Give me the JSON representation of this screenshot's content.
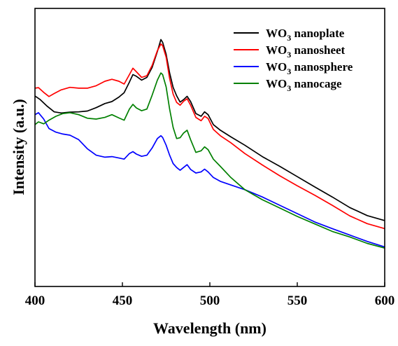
{
  "chart_data": {
    "type": "line",
    "title": "",
    "xlabel": "Wavelength (nm)",
    "ylabel": "Intensity (a.u.)",
    "xlim": [
      400,
      600
    ],
    "ylim": [
      0,
      1
    ],
    "xticks": [
      "400",
      "450",
      "500",
      "550",
      "600"
    ],
    "yticks_shown": false,
    "grid": false,
    "legend_position": "top-right",
    "series": [
      {
        "name_prefix": "WO",
        "name_sub": "3",
        "name_suffix": " nanoplate",
        "color": "#000000",
        "points": [
          [
            400,
            0.685
          ],
          [
            403,
            0.672
          ],
          [
            407,
            0.648
          ],
          [
            411,
            0.628
          ],
          [
            415,
            0.624
          ],
          [
            420,
            0.627
          ],
          [
            425,
            0.628
          ],
          [
            430,
            0.631
          ],
          [
            435,
            0.643
          ],
          [
            440,
            0.658
          ],
          [
            444,
            0.665
          ],
          [
            448,
            0.681
          ],
          [
            451,
            0.697
          ],
          [
            454,
            0.735
          ],
          [
            456,
            0.762
          ],
          [
            458,
            0.756
          ],
          [
            461,
            0.742
          ],
          [
            464,
            0.752
          ],
          [
            467,
            0.788
          ],
          [
            470,
            0.845
          ],
          [
            472,
            0.888
          ],
          [
            473,
            0.878
          ],
          [
            475,
            0.835
          ],
          [
            477,
            0.768
          ],
          [
            479,
            0.716
          ],
          [
            481,
            0.686
          ],
          [
            483,
            0.663
          ],
          [
            485,
            0.672
          ],
          [
            487,
            0.684
          ],
          [
            489,
            0.665
          ],
          [
            492,
            0.622
          ],
          [
            495,
            0.612
          ],
          [
            497,
            0.628
          ],
          [
            499,
            0.618
          ],
          [
            502,
            0.582
          ],
          [
            506,
            0.562
          ],
          [
            512,
            0.538
          ],
          [
            520,
            0.508
          ],
          [
            530,
            0.467
          ],
          [
            540,
            0.432
          ],
          [
            550,
            0.395
          ],
          [
            560,
            0.358
          ],
          [
            570,
            0.322
          ],
          [
            580,
            0.284
          ],
          [
            590,
            0.255
          ],
          [
            600,
            0.237
          ]
        ]
      },
      {
        "name_prefix": "WO",
        "name_sub": "3",
        "name_suffix": " nanosheet",
        "color": "#ff0000",
        "points": [
          [
            400,
            0.713
          ],
          [
            402,
            0.715
          ],
          [
            405,
            0.698
          ],
          [
            408,
            0.683
          ],
          [
            411,
            0.694
          ],
          [
            415,
            0.707
          ],
          [
            420,
            0.716
          ],
          [
            425,
            0.713
          ],
          [
            430,
            0.713
          ],
          [
            435,
            0.722
          ],
          [
            440,
            0.738
          ],
          [
            444,
            0.745
          ],
          [
            448,
            0.738
          ],
          [
            451,
            0.728
          ],
          [
            454,
            0.762
          ],
          [
            456,
            0.785
          ],
          [
            458,
            0.772
          ],
          [
            461,
            0.752
          ],
          [
            464,
            0.758
          ],
          [
            467,
            0.795
          ],
          [
            470,
            0.848
          ],
          [
            472,
            0.872
          ],
          [
            473,
            0.866
          ],
          [
            475,
            0.825
          ],
          [
            477,
            0.748
          ],
          [
            479,
            0.692
          ],
          [
            481,
            0.662
          ],
          [
            483,
            0.652
          ],
          [
            485,
            0.666
          ],
          [
            487,
            0.675
          ],
          [
            489,
            0.652
          ],
          [
            492,
            0.608
          ],
          [
            495,
            0.596
          ],
          [
            497,
            0.612
          ],
          [
            499,
            0.604
          ],
          [
            502,
            0.565
          ],
          [
            506,
            0.542
          ],
          [
            512,
            0.517
          ],
          [
            520,
            0.478
          ],
          [
            530,
            0.437
          ],
          [
            540,
            0.398
          ],
          [
            550,
            0.362
          ],
          [
            560,
            0.328
          ],
          [
            570,
            0.292
          ],
          [
            580,
            0.254
          ],
          [
            590,
            0.226
          ],
          [
            600,
            0.208
          ]
        ]
      },
      {
        "name_prefix": "WO",
        "name_sub": "3",
        "name_suffix": " nanosphere",
        "color": "#0000ff",
        "points": [
          [
            400,
            0.618
          ],
          [
            402,
            0.625
          ],
          [
            405,
            0.602
          ],
          [
            408,
            0.568
          ],
          [
            412,
            0.555
          ],
          [
            416,
            0.548
          ],
          [
            420,
            0.544
          ],
          [
            425,
            0.528
          ],
          [
            430,
            0.495
          ],
          [
            435,
            0.472
          ],
          [
            440,
            0.465
          ],
          [
            444,
            0.467
          ],
          [
            448,
            0.462
          ],
          [
            451,
            0.458
          ],
          [
            454,
            0.478
          ],
          [
            456,
            0.485
          ],
          [
            458,
            0.476
          ],
          [
            461,
            0.468
          ],
          [
            464,
            0.472
          ],
          [
            467,
            0.498
          ],
          [
            470,
            0.532
          ],
          [
            472,
            0.542
          ],
          [
            473,
            0.536
          ],
          [
            475,
            0.508
          ],
          [
            477,
            0.472
          ],
          [
            479,
            0.442
          ],
          [
            481,
            0.428
          ],
          [
            483,
            0.418
          ],
          [
            485,
            0.428
          ],
          [
            487,
            0.438
          ],
          [
            489,
            0.421
          ],
          [
            492,
            0.408
          ],
          [
            495,
            0.412
          ],
          [
            497,
            0.422
          ],
          [
            499,
            0.412
          ],
          [
            502,
            0.392
          ],
          [
            506,
            0.378
          ],
          [
            512,
            0.365
          ],
          [
            520,
            0.348
          ],
          [
            530,
            0.322
          ],
          [
            540,
            0.292
          ],
          [
            550,
            0.262
          ],
          [
            560,
            0.232
          ],
          [
            570,
            0.208
          ],
          [
            580,
            0.185
          ],
          [
            590,
            0.162
          ],
          [
            600,
            0.142
          ]
        ]
      },
      {
        "name_prefix": "WO",
        "name_sub": "3",
        "name_suffix": " nanocage",
        "color": "#008000",
        "points": [
          [
            400,
            0.582
          ],
          [
            402,
            0.592
          ],
          [
            405,
            0.585
          ],
          [
            408,
            0.598
          ],
          [
            412,
            0.612
          ],
          [
            416,
            0.622
          ],
          [
            420,
            0.625
          ],
          [
            425,
            0.618
          ],
          [
            430,
            0.605
          ],
          [
            435,
            0.602
          ],
          [
            440,
            0.608
          ],
          [
            444,
            0.618
          ],
          [
            448,
            0.606
          ],
          [
            451,
            0.598
          ],
          [
            454,
            0.638
          ],
          [
            456,
            0.655
          ],
          [
            458,
            0.642
          ],
          [
            461,
            0.632
          ],
          [
            464,
            0.638
          ],
          [
            467,
            0.688
          ],
          [
            470,
            0.742
          ],
          [
            472,
            0.768
          ],
          [
            473,
            0.762
          ],
          [
            475,
            0.718
          ],
          [
            477,
            0.638
          ],
          [
            479,
            0.572
          ],
          [
            481,
            0.532
          ],
          [
            483,
            0.535
          ],
          [
            485,
            0.552
          ],
          [
            487,
            0.562
          ],
          [
            489,
            0.528
          ],
          [
            492,
            0.482
          ],
          [
            495,
            0.488
          ],
          [
            497,
            0.502
          ],
          [
            499,
            0.492
          ],
          [
            502,
            0.458
          ],
          [
            506,
            0.432
          ],
          [
            512,
            0.392
          ],
          [
            520,
            0.348
          ],
          [
            530,
            0.312
          ],
          [
            540,
            0.282
          ],
          [
            550,
            0.252
          ],
          [
            560,
            0.225
          ],
          [
            570,
            0.198
          ],
          [
            580,
            0.178
          ],
          [
            590,
            0.155
          ],
          [
            600,
            0.138
          ]
        ]
      }
    ]
  }
}
